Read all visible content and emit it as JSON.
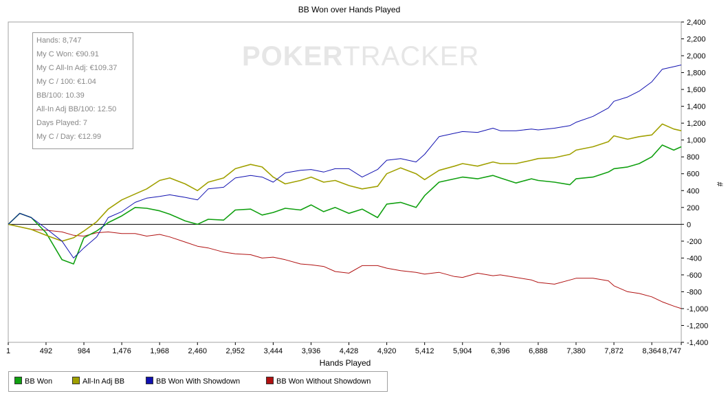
{
  "info_box": {
    "lines": [
      "Hands: 8,747",
      "My C Won: €90.91",
      "My C All-In Adj: €109.37",
      "My C / 100: €1.04",
      "BB/100: 10.39",
      "All-In Adj BB/100: 12.50",
      "Days Played: 7",
      "My C / Day: €12.99"
    ]
  },
  "watermark": {
    "bold": "POKER",
    "light": "TRACKER"
  },
  "chart_data": {
    "type": "line",
    "title": "BB Won over Hands Played",
    "xlabel": "Hands Played",
    "ylabel": "#",
    "xlim": [
      1,
      8747
    ],
    "ylim": [
      -1400,
      2400
    ],
    "x_ticks": [
      "1",
      "492",
      "984",
      "1,476",
      "1,968",
      "2,460",
      "2,952",
      "3,444",
      "3,936",
      "4,428",
      "4,920",
      "5,412",
      "5,904",
      "6,396",
      "6,888",
      "7,380",
      "7,872",
      "8,364",
      "8,747"
    ],
    "y_ticks": [
      "2,400",
      "2,200",
      "2,000",
      "1,800",
      "1,600",
      "1,400",
      "1,200",
      "1,000",
      "800",
      "600",
      "400",
      "200",
      "0",
      "-200",
      "-400",
      "-600",
      "-800",
      "-1,000",
      "-1,200",
      "-1,400"
    ],
    "x": [
      1,
      150,
      300,
      492,
      700,
      850,
      984,
      1150,
      1300,
      1476,
      1650,
      1800,
      1968,
      2100,
      2300,
      2460,
      2600,
      2800,
      2952,
      3150,
      3300,
      3444,
      3600,
      3800,
      3936,
      4100,
      4250,
      4428,
      4600,
      4800,
      4920,
      5100,
      5300,
      5412,
      5600,
      5800,
      5904,
      6100,
      6300,
      6396,
      6600,
      6800,
      6888,
      7100,
      7300,
      7380,
      7600,
      7800,
      7872,
      8050,
      8200,
      8364,
      8500,
      8650,
      8747
    ],
    "series": [
      {
        "name": "BB Won",
        "color": "#10a010",
        "values": [
          0,
          130,
          80,
          -100,
          -420,
          -470,
          -160,
          -80,
          20,
          100,
          200,
          190,
          160,
          120,
          40,
          0,
          60,
          50,
          170,
          180,
          110,
          140,
          190,
          170,
          230,
          150,
          200,
          130,
          180,
          80,
          240,
          260,
          200,
          340,
          500,
          540,
          560,
          540,
          580,
          550,
          490,
          540,
          520,
          500,
          470,
          540,
          560,
          620,
          660,
          680,
          720,
          800,
          940,
          880,
          920
        ]
      },
      {
        "name": "All-In Adj BB",
        "color": "#a0a000",
        "values": [
          0,
          -30,
          -60,
          -130,
          -200,
          -160,
          -80,
          30,
          180,
          290,
          360,
          420,
          520,
          550,
          480,
          400,
          500,
          550,
          660,
          710,
          680,
          560,
          480,
          520,
          560,
          500,
          520,
          460,
          420,
          450,
          600,
          670,
          600,
          530,
          640,
          690,
          720,
          690,
          740,
          720,
          720,
          760,
          780,
          790,
          830,
          880,
          920,
          980,
          1050,
          1010,
          1040,
          1060,
          1190,
          1130,
          1110
        ]
      },
      {
        "name": "BB Won With Showdown",
        "color": "#1010b0",
        "values": [
          0,
          130,
          80,
          -50,
          -200,
          -400,
          -280,
          -150,
          80,
          150,
          260,
          310,
          330,
          350,
          320,
          290,
          420,
          440,
          550,
          580,
          560,
          500,
          610,
          640,
          650,
          620,
          660,
          660,
          560,
          650,
          760,
          780,
          740,
          830,
          1040,
          1080,
          1100,
          1090,
          1140,
          1110,
          1110,
          1130,
          1120,
          1140,
          1170,
          1210,
          1280,
          1380,
          1460,
          1510,
          1580,
          1690,
          1840,
          1870,
          1890
        ]
      },
      {
        "name": "BB Won Without Showdown",
        "color": "#b01010",
        "values": [
          0,
          -30,
          -60,
          -70,
          -90,
          -130,
          -140,
          -100,
          -90,
          -110,
          -110,
          -140,
          -120,
          -150,
          -210,
          -260,
          -280,
          -330,
          -350,
          -360,
          -400,
          -390,
          -420,
          -470,
          -480,
          -500,
          -560,
          -580,
          -490,
          -490,
          -520,
          -550,
          -570,
          -590,
          -570,
          -620,
          -630,
          -580,
          -610,
          -600,
          -630,
          -660,
          -690,
          -710,
          -660,
          -640,
          -640,
          -670,
          -730,
          -800,
          -820,
          -860,
          -920,
          -970,
          -1000
        ]
      }
    ]
  }
}
